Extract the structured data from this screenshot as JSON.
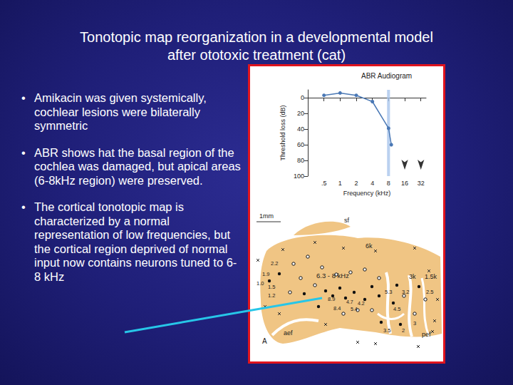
{
  "slide": {
    "title": [
      "Tonotopic map reorganization in a developmental model",
      "after ototoxic treatment (cat)"
    ],
    "bullets": [
      "Amikacin was given systemically, cochlear lesions were bilaterally symmetric",
      "ABR shows hat the basal region of the cochlea was damaged, but apical areas (6-8kHz region) were preserved.",
      "The cortical tonotopic map is characterized by a normal representation of low frequencies, but the cortical region deprived of normal input now contains neurons tuned to 6-8 kHz"
    ]
  },
  "chart_data": {
    "type": "line",
    "title": "ABR Audiogram",
    "x_label": "Frequency (kHz)",
    "y_label": "Threshold loss (dB)",
    "x": [
      0.5,
      1,
      2,
      4,
      8,
      9
    ],
    "values": [
      -3,
      -6,
      -3,
      5,
      39,
      60
    ],
    "color": "#4a78b5",
    "marker": "circle",
    "log": "x",
    "xlim": [
      0.25,
      40
    ],
    "xticks": [
      {
        "value": 0.5,
        "label": ".5"
      },
      1,
      2,
      4,
      8,
      16,
      32
    ],
    "ylim": [
      100,
      -10
    ],
    "yticks": [
      0,
      20,
      40,
      60,
      80,
      100
    ],
    "grid": false,
    "band": [
      7.5,
      8.5
    ],
    "no_response": [
      16,
      32
    ]
  },
  "map": {
    "scale": "1mm",
    "labels": [
      "sf",
      "6k",
      "6.3 - 8 kHz",
      "3k",
      "1.5k",
      "aef",
      "pef",
      "A",
      "2.2",
      "1.9",
      "1.0",
      "1.5",
      "1.2",
      "8.9",
      "8.4",
      "4.7",
      "5.4",
      "4.2",
      "5.3",
      "3.2",
      "4.5",
      "3.5",
      "2",
      "2.5",
      "3"
    ]
  }
}
